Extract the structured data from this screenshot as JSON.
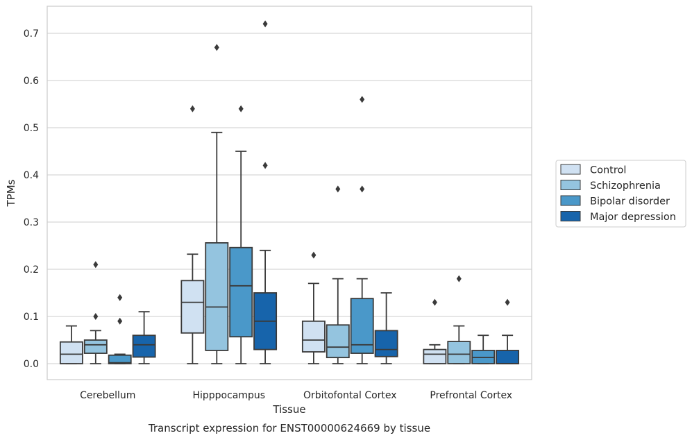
{
  "chart_data": {
    "type": "box",
    "title": "Transcript expression for ENST00000624669 by tissue",
    "xlabel": "Tissue",
    "ylabel": "TPMs",
    "ylim": [
      -0.035,
      0.758
    ],
    "yticks": [
      0.0,
      0.1,
      0.2,
      0.3,
      0.4,
      0.5,
      0.6,
      0.7
    ],
    "ytick_labels": [
      "0.0",
      "0.1",
      "0.2",
      "0.3",
      "0.4",
      "0.5",
      "0.6",
      "0.7"
    ],
    "grid": "horizontal",
    "legend_position": "right",
    "categories": [
      "Cerebellum",
      "Hipppocampus",
      "Orbitofontal Cortex",
      "Prefrontal Cortex"
    ],
    "series": [
      {
        "name": "Control",
        "color": "#d0e1f2",
        "boxes": [
          {
            "whislo": 0.0,
            "q1": 0.0,
            "med": 0.02,
            "q3": 0.046,
            "whishi": 0.08,
            "fliers": []
          },
          {
            "whislo": 0.0,
            "q1": 0.065,
            "med": 0.13,
            "q3": 0.176,
            "whishi": 0.232,
            "fliers": [
              0.54
            ]
          },
          {
            "whislo": 0.0,
            "q1": 0.025,
            "med": 0.05,
            "q3": 0.09,
            "whishi": 0.17,
            "fliers": [
              0.23
            ]
          },
          {
            "whislo": 0.0,
            "q1": 0.0,
            "med": 0.02,
            "q3": 0.03,
            "whishi": 0.04,
            "fliers": [
              0.13
            ]
          }
        ]
      },
      {
        "name": "Schizophrenia",
        "color": "#94c4df",
        "boxes": [
          {
            "whislo": 0.0,
            "q1": 0.022,
            "med": 0.04,
            "q3": 0.05,
            "whishi": 0.07,
            "fliers": [
              0.1,
              0.21
            ]
          },
          {
            "whislo": 0.0,
            "q1": 0.028,
            "med": 0.12,
            "q3": 0.256,
            "whishi": 0.49,
            "fliers": [
              0.67
            ]
          },
          {
            "whislo": 0.0,
            "q1": 0.013,
            "med": 0.035,
            "q3": 0.082,
            "whishi": 0.18,
            "fliers": [
              0.37
            ]
          },
          {
            "whislo": 0.0,
            "q1": 0.0,
            "med": 0.02,
            "q3": 0.047,
            "whishi": 0.08,
            "fliers": [
              0.18
            ]
          }
        ]
      },
      {
        "name": "Bipolar disorder",
        "color": "#4a98c9",
        "boxes": [
          {
            "whislo": 0.0,
            "q1": 0.0,
            "med": 0.002,
            "q3": 0.018,
            "whishi": 0.02,
            "fliers": [
              0.09,
              0.14
            ]
          },
          {
            "whislo": 0.0,
            "q1": 0.057,
            "med": 0.165,
            "q3": 0.246,
            "whishi": 0.45,
            "fliers": [
              0.54
            ]
          },
          {
            "whislo": 0.0,
            "q1": 0.022,
            "med": 0.04,
            "q3": 0.138,
            "whishi": 0.18,
            "fliers": [
              0.37,
              0.56
            ]
          },
          {
            "whislo": 0.0,
            "q1": 0.0,
            "med": 0.013,
            "q3": 0.028,
            "whishi": 0.06,
            "fliers": []
          }
        ]
      },
      {
        "name": "Major depression",
        "color": "#1764ab",
        "boxes": [
          {
            "whislo": 0.0,
            "q1": 0.014,
            "med": 0.04,
            "q3": 0.06,
            "whishi": 0.11,
            "fliers": []
          },
          {
            "whislo": 0.0,
            "q1": 0.03,
            "med": 0.09,
            "q3": 0.15,
            "whishi": 0.24,
            "fliers": [
              0.42,
              0.72
            ]
          },
          {
            "whislo": 0.0,
            "q1": 0.015,
            "med": 0.03,
            "q3": 0.07,
            "whishi": 0.15,
            "fliers": []
          },
          {
            "whislo": 0.0,
            "q1": 0.0,
            "med": 0.0,
            "q3": 0.028,
            "whishi": 0.06,
            "fliers": [
              0.13
            ]
          }
        ]
      }
    ]
  }
}
